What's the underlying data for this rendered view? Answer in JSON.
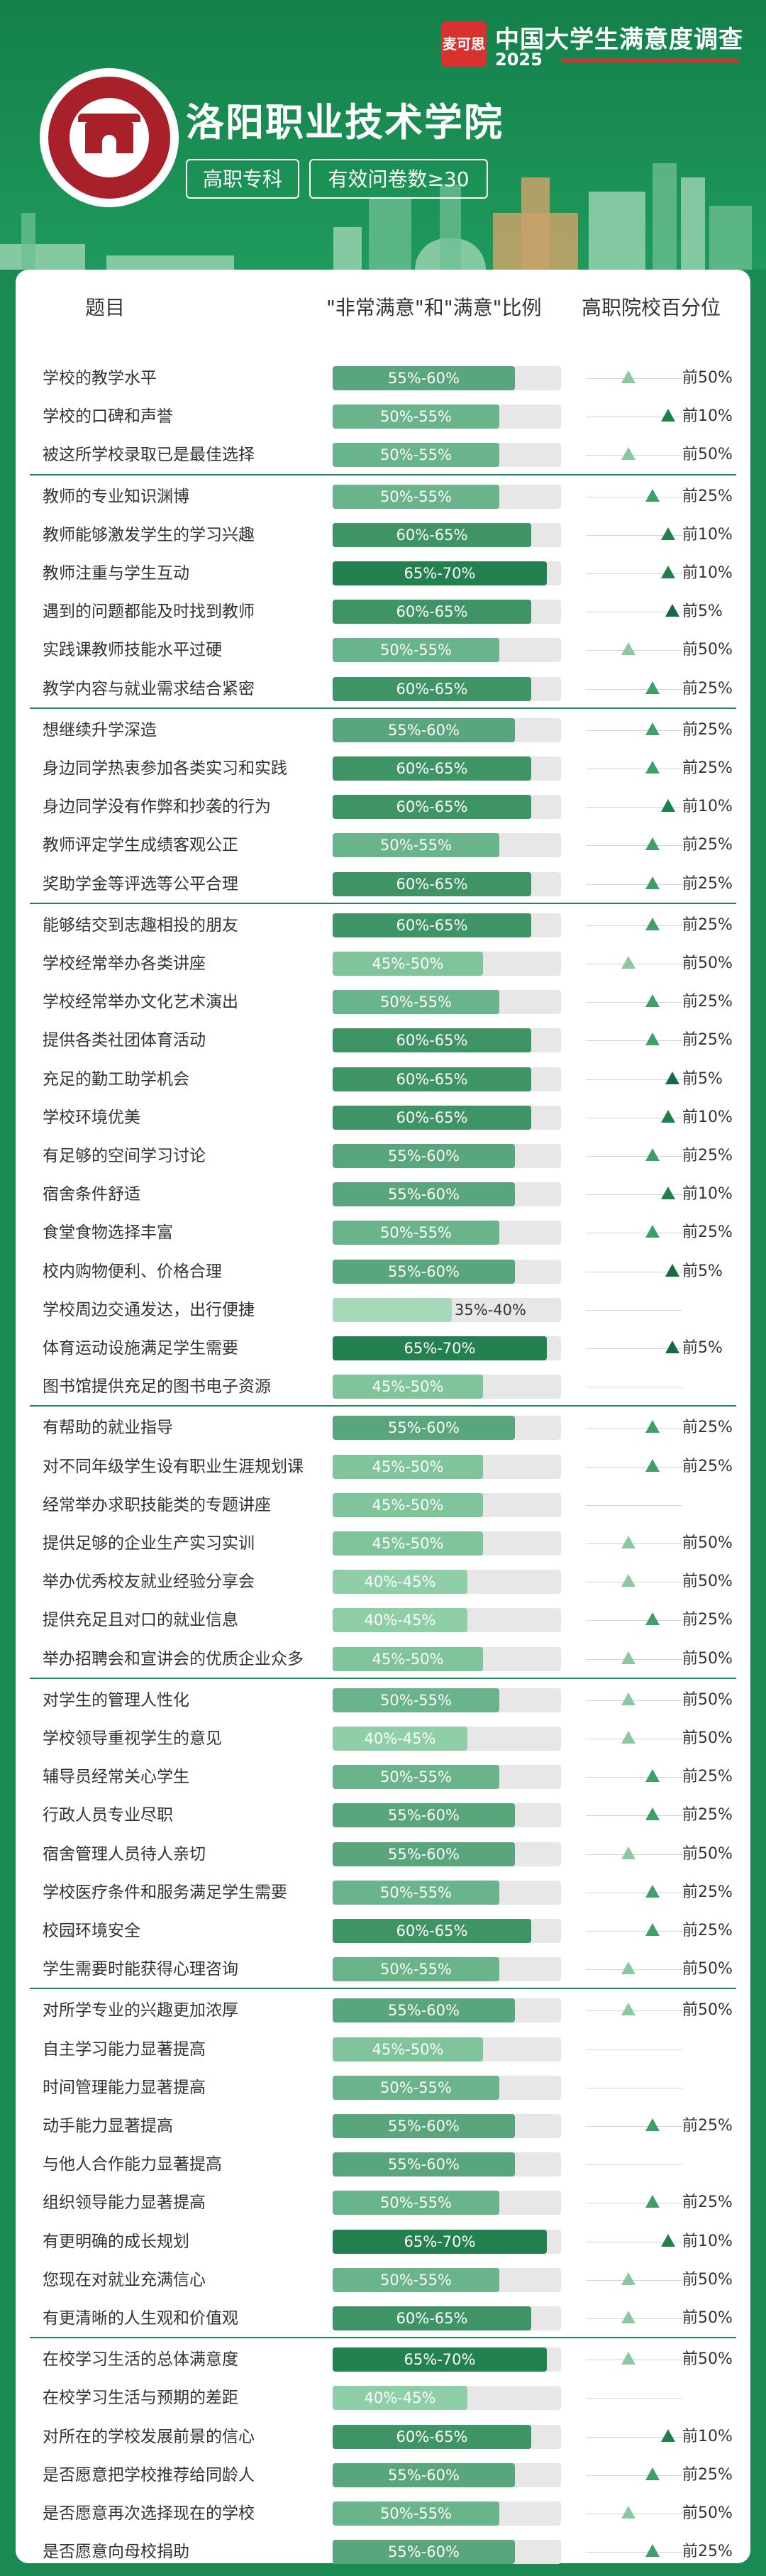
{
  "brand": {
    "logo_text": "麦可思",
    "title": "中国大学生满意度调查",
    "year": "2025",
    "accent": "#d8322f"
  },
  "school": {
    "name": "洛阳职业技术学院",
    "type": "高职专科",
    "sample": "有效问卷数≥30",
    "seal_color": "#a8212a"
  },
  "table": {
    "col_question": "题目",
    "col_ratio": "\"非常满意\"和\"满意\"比例",
    "col_percentile": "高职院校百分位"
  },
  "colors": {
    "r35": "#a6d9b9",
    "r40": "#8fcfa8",
    "r45": "#7fc49b",
    "r50": "#69b48a",
    "r55": "#5aa67c",
    "r60": "#3f9465",
    "r65": "#23804f",
    "p50": "#8cc7a3",
    "p25": "#3f9e6a",
    "p10": "#1f7f4d",
    "p5": "#156b3f"
  },
  "groups": [
    {
      "rows": [
        {
          "q": "学校的教学水平",
          "range": "55%-60%",
          "level": 55,
          "pct": "前50%",
          "pv": 50
        },
        {
          "q": "学校的口碑和声誉",
          "range": "50%-55%",
          "level": 50,
          "pct": "前10%",
          "pv": 10
        },
        {
          "q": "被这所学校录取已是最佳选择",
          "range": "50%-55%",
          "level": 50,
          "pct": "前50%",
          "pv": 50
        }
      ]
    },
    {
      "rows": [
        {
          "q": "教师的专业知识渊博",
          "range": "50%-55%",
          "level": 50,
          "pct": "前25%",
          "pv": 25
        },
        {
          "q": "教师能够激发学生的学习兴趣",
          "range": "60%-65%",
          "level": 60,
          "pct": "前10%",
          "pv": 10
        },
        {
          "q": "教师注重与学生互动",
          "range": "65%-70%",
          "level": 65,
          "pct": "前10%",
          "pv": 10
        },
        {
          "q": "遇到的问题都能及时找到教师",
          "range": "60%-65%",
          "level": 60,
          "pct": "前5%",
          "pv": 5
        },
        {
          "q": "实践课教师技能水平过硬",
          "range": "50%-55%",
          "level": 50,
          "pct": "前50%",
          "pv": 50
        },
        {
          "q": "教学内容与就业需求结合紧密",
          "range": "60%-65%",
          "level": 60,
          "pct": "前25%",
          "pv": 25
        }
      ]
    },
    {
      "rows": [
        {
          "q": "想继续升学深造",
          "range": "55%-60%",
          "level": 55,
          "pct": "前25%",
          "pv": 25
        },
        {
          "q": "身边同学热衷参加各类实习和实践",
          "range": "60%-65%",
          "level": 60,
          "pct": "前25%",
          "pv": 25
        },
        {
          "q": "身边同学没有作弊和抄袭的行为",
          "range": "60%-65%",
          "level": 60,
          "pct": "前10%",
          "pv": 10
        },
        {
          "q": "教师评定学生成绩客观公正",
          "range": "50%-55%",
          "level": 50,
          "pct": "前25%",
          "pv": 25
        },
        {
          "q": "奖助学金等评选等公平合理",
          "range": "60%-65%",
          "level": 60,
          "pct": "前25%",
          "pv": 25
        }
      ]
    },
    {
      "rows": [
        {
          "q": "能够结交到志趣相投的朋友",
          "range": "60%-65%",
          "level": 60,
          "pct": "前25%",
          "pv": 25
        },
        {
          "q": "学校经常举办各类讲座",
          "range": "45%-50%",
          "level": 45,
          "pct": "前50%",
          "pv": 50
        },
        {
          "q": "学校经常举办文化艺术演出",
          "range": "50%-55%",
          "level": 50,
          "pct": "前25%",
          "pv": 25
        },
        {
          "q": "提供各类社团体育活动",
          "range": "60%-65%",
          "level": 60,
          "pct": "前25%",
          "pv": 25
        },
        {
          "q": "充足的勤工助学机会",
          "range": "60%-65%",
          "level": 60,
          "pct": "前5%",
          "pv": 5
        },
        {
          "q": "学校环境优美",
          "range": "60%-65%",
          "level": 60,
          "pct": "前10%",
          "pv": 10
        },
        {
          "q": "有足够的空间学习讨论",
          "range": "55%-60%",
          "level": 55,
          "pct": "前25%",
          "pv": 25
        },
        {
          "q": "宿舍条件舒适",
          "range": "55%-60%",
          "level": 55,
          "pct": "前10%",
          "pv": 10
        },
        {
          "q": "食堂食物选择丰富",
          "range": "50%-55%",
          "level": 50,
          "pct": "前25%",
          "pv": 25
        },
        {
          "q": "校内购物便利、价格合理",
          "range": "55%-60%",
          "level": 55,
          "pct": "前5%",
          "pv": 5
        },
        {
          "q": "学校周边交通发达，出行便捷",
          "range": "35%-40%",
          "level": 35,
          "pct": "",
          "pv": 0
        },
        {
          "q": "体育运动设施满足学生需要",
          "range": "65%-70%",
          "level": 65,
          "pct": "前5%",
          "pv": 5
        },
        {
          "q": "图书馆提供充足的图书电子资源",
          "range": "45%-50%",
          "level": 45,
          "pct": "",
          "pv": 0
        }
      ]
    },
    {
      "rows": [
        {
          "q": "有帮助的就业指导",
          "range": "55%-60%",
          "level": 55,
          "pct": "前25%",
          "pv": 25
        },
        {
          "q": "对不同年级学生设有职业生涯规划课",
          "range": "45%-50%",
          "level": 45,
          "pct": "前25%",
          "pv": 25
        },
        {
          "q": "经常举办求职技能类的专题讲座",
          "range": "45%-50%",
          "level": 45,
          "pct": "",
          "pv": 0
        },
        {
          "q": "提供足够的企业生产实习实训",
          "range": "45%-50%",
          "level": 45,
          "pct": "前50%",
          "pv": 50
        },
        {
          "q": "举办优秀校友就业经验分享会",
          "range": "40%-45%",
          "level": 40,
          "pct": "前50%",
          "pv": 50
        },
        {
          "q": "提供充足且对口的就业信息",
          "range": "40%-45%",
          "level": 40,
          "pct": "前25%",
          "pv": 25
        },
        {
          "q": "举办招聘会和宣讲会的优质企业众多",
          "range": "45%-50%",
          "level": 45,
          "pct": "前50%",
          "pv": 50
        }
      ]
    },
    {
      "rows": [
        {
          "q": "对学生的管理人性化",
          "range": "50%-55%",
          "level": 50,
          "pct": "前50%",
          "pv": 50
        },
        {
          "q": "学校领导重视学生的意见",
          "range": "40%-45%",
          "level": 40,
          "pct": "前50%",
          "pv": 50
        },
        {
          "q": "辅导员经常关心学生",
          "range": "50%-55%",
          "level": 50,
          "pct": "前25%",
          "pv": 25
        },
        {
          "q": "行政人员专业尽职",
          "range": "55%-60%",
          "level": 55,
          "pct": "前25%",
          "pv": 25
        },
        {
          "q": "宿舍管理人员待人亲切",
          "range": "55%-60%",
          "level": 55,
          "pct": "前50%",
          "pv": 50
        },
        {
          "q": "学校医疗条件和服务满足学生需要",
          "range": "50%-55%",
          "level": 50,
          "pct": "前25%",
          "pv": 25
        },
        {
          "q": "校园环境安全",
          "range": "60%-65%",
          "level": 60,
          "pct": "前25%",
          "pv": 25
        },
        {
          "q": "学生需要时能获得心理咨询",
          "range": "50%-55%",
          "level": 50,
          "pct": "前50%",
          "pv": 50
        }
      ]
    },
    {
      "rows": [
        {
          "q": "对所学专业的兴趣更加浓厚",
          "range": "55%-60%",
          "level": 55,
          "pct": "前50%",
          "pv": 50
        },
        {
          "q": "自主学习能力显著提高",
          "range": "45%-50%",
          "level": 45,
          "pct": "",
          "pv": 0
        },
        {
          "q": "时间管理能力显著提高",
          "range": "50%-55%",
          "level": 50,
          "pct": "",
          "pv": 0
        },
        {
          "q": "动手能力显著提高",
          "range": "55%-60%",
          "level": 55,
          "pct": "前25%",
          "pv": 25
        },
        {
          "q": "与他人合作能力显著提高",
          "range": "55%-60%",
          "level": 55,
          "pct": "",
          "pv": 0
        },
        {
          "q": "组织领导能力显著提高",
          "range": "50%-55%",
          "level": 50,
          "pct": "前25%",
          "pv": 25
        },
        {
          "q": "有更明确的成长规划",
          "range": "65%-70%",
          "level": 65,
          "pct": "前10%",
          "pv": 10
        },
        {
          "q": "您现在对就业充满信心",
          "range": "50%-55%",
          "level": 50,
          "pct": "前50%",
          "pv": 50
        },
        {
          "q": "有更清晰的人生观和价值观",
          "range": "60%-65%",
          "level": 60,
          "pct": "前50%",
          "pv": 50
        }
      ]
    },
    {
      "rows": [
        {
          "q": "在校学习生活的总体满意度",
          "range": "65%-70%",
          "level": 65,
          "pct": "前50%",
          "pv": 50
        },
        {
          "q": "在校学习生活与预期的差距",
          "range": "40%-45%",
          "level": 40,
          "pct": "",
          "pv": 0
        },
        {
          "q": "对所在的学校发展前景的信心",
          "range": "60%-65%",
          "level": 60,
          "pct": "前10%",
          "pv": 10
        },
        {
          "q": "是否愿意把学校推荐给同龄人",
          "range": "55%-60%",
          "level": 55,
          "pct": "前25%",
          "pv": 25
        },
        {
          "q": "是否愿意再次选择现在的学校",
          "range": "50%-55%",
          "level": 50,
          "pct": "前50%",
          "pv": 50
        },
        {
          "q": "是否愿意向母校捐助",
          "range": "55%-60%",
          "level": 55,
          "pct": "前25%",
          "pv": 25
        }
      ]
    }
  ]
}
